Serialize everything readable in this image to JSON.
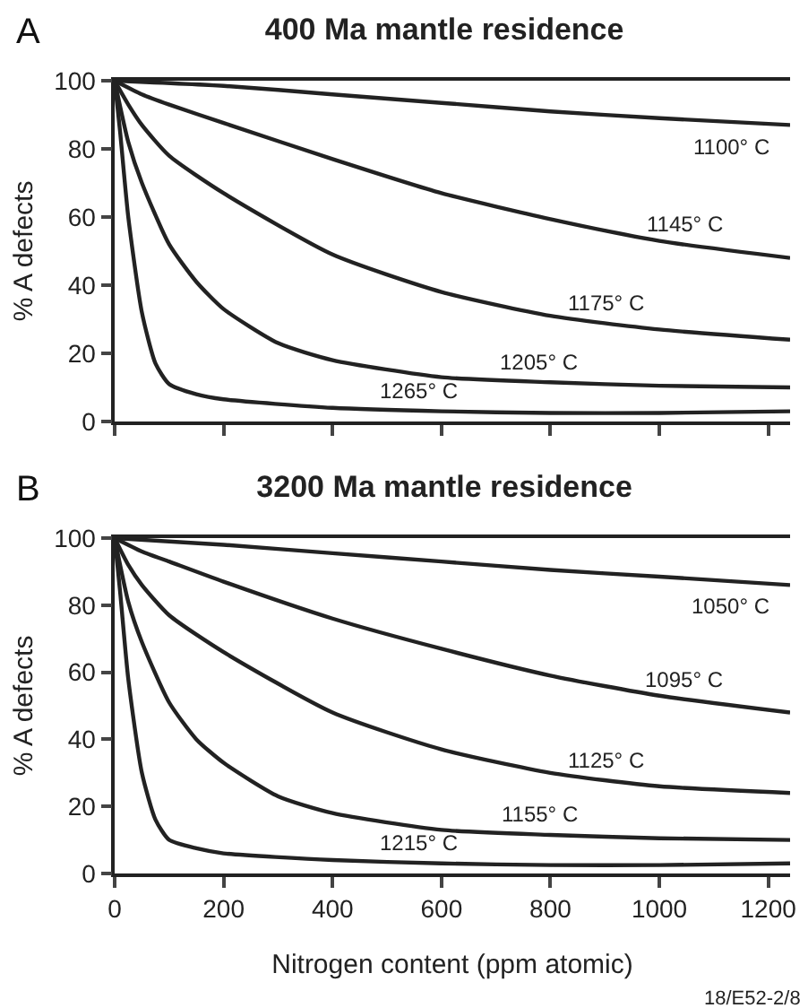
{
  "chart_data": [
    {
      "type": "line",
      "title": "400 Ma mantle residence",
      "ylabel": "% A defects",
      "xlim": [
        0,
        1240
      ],
      "xticks": [
        {
          "value": 0,
          "label": null
        },
        {
          "value": 200,
          "label": null
        },
        {
          "value": 400,
          "label": null
        },
        {
          "value": 600,
          "label": null
        },
        {
          "value": 800,
          "label": null
        },
        {
          "value": 1000,
          "label": null
        },
        {
          "value": 1200,
          "label": null
        }
      ],
      "ylim": [
        0,
        100
      ],
      "yticks": [
        0,
        20,
        40,
        60,
        80,
        100
      ],
      "tick_labels": "y",
      "grid": false,
      "legend": false,
      "marker": "none",
      "line_style": "solid",
      "annotations": [
        "A"
      ],
      "series": [
        {
          "name": "1100° C",
          "color": "#222222",
          "x": [
            0,
            200,
            400,
            600,
            800,
            1000,
            1240
          ],
          "values": [
            100,
            98.5,
            96,
            93.5,
            91,
            89,
            87
          ]
        },
        {
          "name": "1145° C",
          "color": "#222222",
          "x": [
            0,
            50,
            100,
            200,
            400,
            600,
            800,
            1000,
            1240
          ],
          "values": [
            100,
            96,
            93,
            87.6,
            77,
            67,
            59.4,
            53,
            48
          ]
        },
        {
          "name": "1175° C",
          "color": "#222222",
          "x": [
            0,
            25,
            50,
            100,
            200,
            400,
            600,
            800,
            1000,
            1240
          ],
          "values": [
            100,
            93,
            87,
            78,
            67,
            49,
            38,
            31,
            27,
            24
          ]
        },
        {
          "name": "1205° C",
          "color": "#222222",
          "x": [
            0,
            25,
            50,
            100,
            150,
            200,
            300,
            400,
            600,
            800,
            1000,
            1240
          ],
          "values": [
            100,
            82,
            70,
            52,
            41,
            33,
            23,
            18,
            13,
            11.5,
            10.5,
            10
          ]
        },
        {
          "name": "1265° C",
          "color": "#222222",
          "x": [
            0,
            10,
            25,
            50,
            75,
            100,
            150,
            200,
            400,
            600,
            800,
            1000,
            1240
          ],
          "values": [
            100,
            85,
            60,
            32,
            17,
            11,
            8,
            6.5,
            4,
            3,
            2.5,
            2.5,
            3
          ]
        }
      ]
    },
    {
      "type": "line",
      "title": "3200 Ma mantle residence",
      "xlabel": "Nitrogen content (ppm atomic)",
      "ylabel": "% A defects",
      "xlim": [
        0,
        1240
      ],
      "xticks": [
        0,
        200,
        400,
        600,
        800,
        1000,
        1200
      ],
      "ylim": [
        0,
        100
      ],
      "yticks": [
        0,
        20,
        40,
        60,
        80,
        100
      ],
      "grid": false,
      "legend": false,
      "marker": "none",
      "line_style": "solid",
      "annotations": [
        "B",
        "18/E52-2/8"
      ],
      "series": [
        {
          "name": "1050° C",
          "color": "#222222",
          "x": [
            0,
            200,
            400,
            600,
            800,
            1000,
            1240
          ],
          "values": [
            100,
            98,
            95.5,
            93,
            90.5,
            88.5,
            86
          ]
        },
        {
          "name": "1095° C",
          "color": "#222222",
          "x": [
            0,
            50,
            100,
            200,
            400,
            600,
            800,
            1000,
            1240
          ],
          "values": [
            100,
            96,
            93,
            87,
            76,
            67,
            59,
            53,
            48
          ]
        },
        {
          "name": "1125° C",
          "color": "#222222",
          "x": [
            0,
            25,
            50,
            100,
            200,
            400,
            600,
            800,
            1000,
            1240
          ],
          "values": [
            100,
            92,
            86,
            77,
            66,
            48,
            37,
            30,
            26,
            24
          ]
        },
        {
          "name": "1155° C",
          "color": "#222222",
          "x": [
            0,
            25,
            50,
            100,
            150,
            200,
            300,
            400,
            600,
            800,
            1000,
            1240
          ],
          "values": [
            100,
            81,
            69,
            51,
            40,
            33,
            23,
            18,
            13,
            11.5,
            10.5,
            10
          ]
        },
        {
          "name": "1215° C",
          "color": "#222222",
          "x": [
            0,
            10,
            25,
            50,
            75,
            100,
            150,
            200,
            400,
            600,
            800,
            1000,
            1240
          ],
          "values": [
            100,
            84,
            58,
            30,
            16,
            10,
            7.5,
            6,
            4,
            3,
            2.5,
            2.5,
            3
          ]
        }
      ]
    }
  ]
}
